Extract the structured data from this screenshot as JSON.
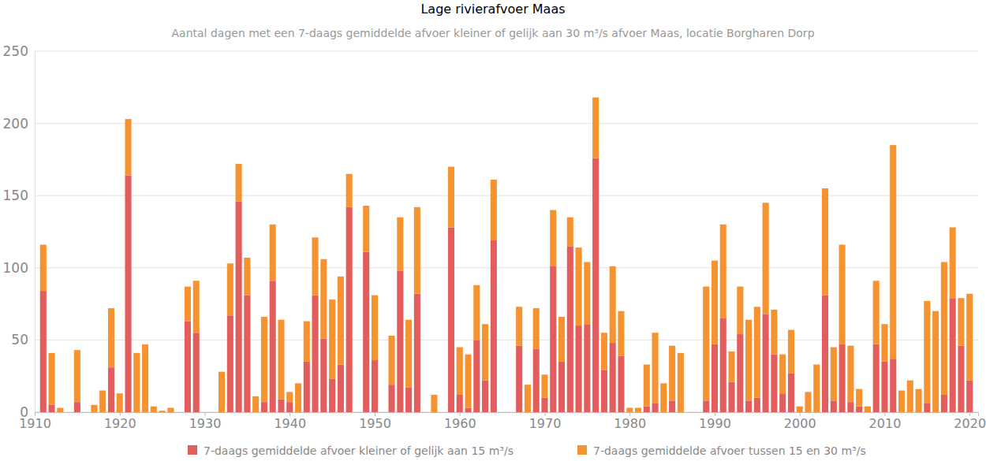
{
  "chart_data": {
    "type": "bar",
    "title": "Lage rivierafvoer Maas",
    "subtitle": "Aantal dagen met een 7-daags gemiddelde afvoer kleiner of gelijk aan 30 m³/s afvoer Maas, locatie Borgharen Dorp",
    "stacked": true,
    "grid": true,
    "legend": "bottom",
    "x": [
      1911,
      1912,
      1913,
      1914,
      1915,
      1916,
      1917,
      1918,
      1919,
      1920,
      1921,
      1922,
      1923,
      1924,
      1925,
      1926,
      1927,
      1928,
      1929,
      1930,
      1931,
      1932,
      1933,
      1934,
      1935,
      1936,
      1937,
      1938,
      1939,
      1940,
      1941,
      1942,
      1943,
      1944,
      1945,
      1946,
      1947,
      1948,
      1949,
      1950,
      1951,
      1952,
      1953,
      1954,
      1955,
      1956,
      1957,
      1958,
      1959,
      1960,
      1961,
      1962,
      1963,
      1964,
      1965,
      1966,
      1967,
      1968,
      1969,
      1970,
      1971,
      1972,
      1973,
      1974,
      1975,
      1976,
      1977,
      1978,
      1979,
      1980,
      1981,
      1982,
      1983,
      1984,
      1985,
      1986,
      1987,
      1988,
      1989,
      1990,
      1991,
      1992,
      1993,
      1994,
      1995,
      1996,
      1997,
      1998,
      1999,
      2000,
      2001,
      2002,
      2003,
      2004,
      2005,
      2006,
      2007,
      2008,
      2009,
      2010,
      2011,
      2012,
      2013,
      2014,
      2015,
      2016,
      2017,
      2018,
      2019,
      2020
    ],
    "xlim": [
      1910,
      2021
    ],
    "xticks": [
      1910,
      1920,
      1930,
      1940,
      1950,
      1960,
      1970,
      1980,
      1990,
      2000,
      2010,
      2020
    ],
    "ylim": [
      0,
      250
    ],
    "yticks": [
      0,
      50,
      100,
      150,
      200,
      250
    ],
    "series": [
      {
        "name": "7-daags gemiddelde afvoer kleiner of gelijk aan 15 m³/s",
        "color": "#e35d5d",
        "values": [
          84,
          5,
          0,
          0,
          7,
          0,
          0,
          0,
          31,
          0,
          164,
          0,
          0,
          0,
          0,
          0,
          0,
          63,
          55,
          0,
          0,
          0,
          67,
          146,
          81,
          0,
          7,
          91,
          9,
          7,
          0,
          35,
          81,
          51,
          23,
          33,
          142,
          0,
          111,
          36,
          0,
          19,
          98,
          17,
          82,
          0,
          0,
          0,
          128,
          12,
          3,
          50,
          22,
          119,
          0,
          0,
          46,
          0,
          44,
          10,
          101,
          35,
          115,
          60,
          61,
          176,
          29,
          48,
          39,
          0,
          0,
          4,
          6,
          0,
          8,
          0,
          0,
          0,
          8,
          47,
          65,
          21,
          54,
          8,
          10,
          68,
          40,
          13,
          27,
          0,
          0,
          0,
          81,
          8,
          47,
          7,
          4,
          0,
          47,
          35,
          37,
          0,
          0,
          0,
          6,
          0,
          12,
          79,
          46,
          22
        ]
      },
      {
        "name": "7-daags gemiddelde afvoer tussen 15 en 30 m³/s",
        "color": "#f59331",
        "values": [
          32,
          36,
          3,
          0,
          36,
          0,
          5,
          15,
          41,
          13,
          39,
          41,
          47,
          4,
          1,
          3,
          0,
          24,
          36,
          0,
          0,
          28,
          36,
          26,
          26,
          11,
          59,
          39,
          55,
          7,
          20,
          28,
          40,
          55,
          55,
          61,
          23,
          0,
          32,
          45,
          0,
          34,
          37,
          47,
          60,
          0,
          12,
          0,
          42,
          33,
          37,
          38,
          39,
          42,
          0,
          0,
          27,
          19,
          28,
          16,
          39,
          31,
          20,
          54,
          43,
          42,
          26,
          53,
          31,
          3,
          3,
          29,
          49,
          20,
          38,
          41,
          0,
          0,
          79,
          58,
          65,
          21,
          33,
          56,
          63,
          77,
          31,
          27,
          30,
          4,
          14,
          33,
          74,
          37,
          69,
          39,
          12,
          4,
          44,
          26,
          148,
          15,
          22,
          16,
          71,
          70,
          92,
          49,
          33,
          60
        ]
      }
    ]
  }
}
